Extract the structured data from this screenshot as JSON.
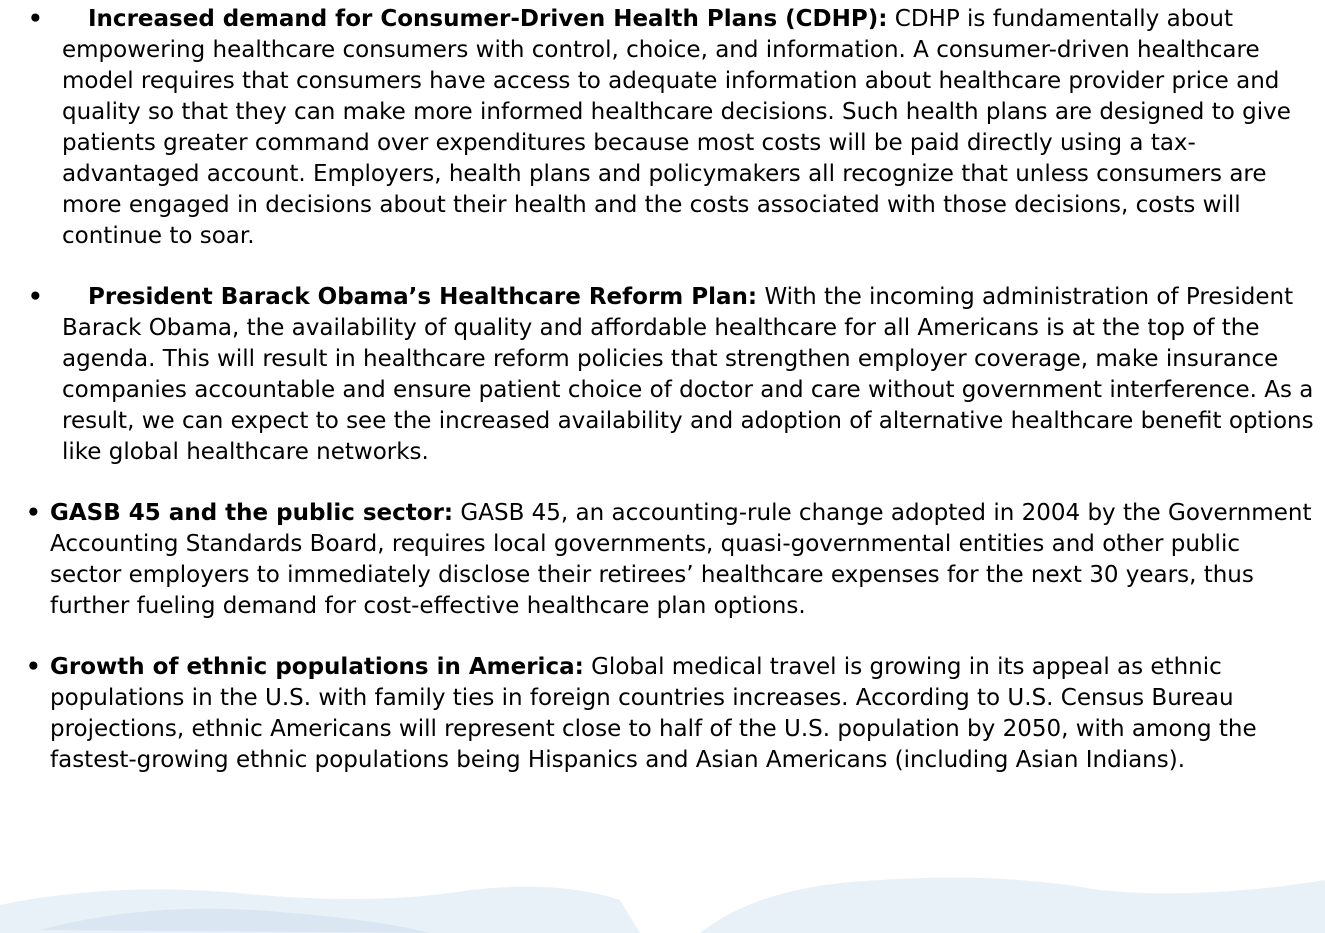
{
  "items": [
    {
      "heading": "Increased demand for Consumer-Driven Health Plans (CDHP):",
      "text": "CDHP is fundamentally about empowering healthcare consumers with control, choice, and information.  A consumer-driven healthcare model requires that consumers have access to adequate information about healthcare provider price and quality so that they can make more informed healthcare decisions.  Such health plans are designed to give patients greater command over expenditures because most costs will be paid directly using a tax-advantaged account.  Employers, health plans and policymakers all recognize that unless consumers are more engaged in decisions about their health and the costs associated with those decisions, costs will continue to soar."
    },
    {
      "heading": "President Barack Obama’s Healthcare Reform Plan:",
      "text": "With the incoming administration of President Barack Obama, the availability of quality and affordable healthcare for all Americans is at the top of the agenda.  This will result in healthcare reform policies that strengthen employer coverage, make insurance companies accountable and ensure patient choice of doctor and care without government interference.  As a result, we can expect to see the increased availability and adoption of alternative healthcare benefit options like global healthcare networks."
    },
    {
      "heading": "GASB 45 and the public sector:",
      "text": "GASB 45, an accounting-rule change adopted in 2004 by the Government Accounting Standards Board, requires local governments, quasi-governmental entities and other public sector employers to immediately disclose their retirees’ healthcare expenses for the next 30 years, thus further fueling demand for cost-effective healthcare plan options."
    },
    {
      "heading": "Growth of ethnic populations in America:",
      "text": "Global medical travel is growing in its appeal as ethnic populations in the U.S. with family ties in foreign countries increases.  According to U.S. Census Bureau projections, ethnic Americans will represent close to half of the U.S. population by 2050, with among the fastest-growing ethnic populations being Hispanics and Asian Americans (including Asian Indians)."
    }
  ]
}
